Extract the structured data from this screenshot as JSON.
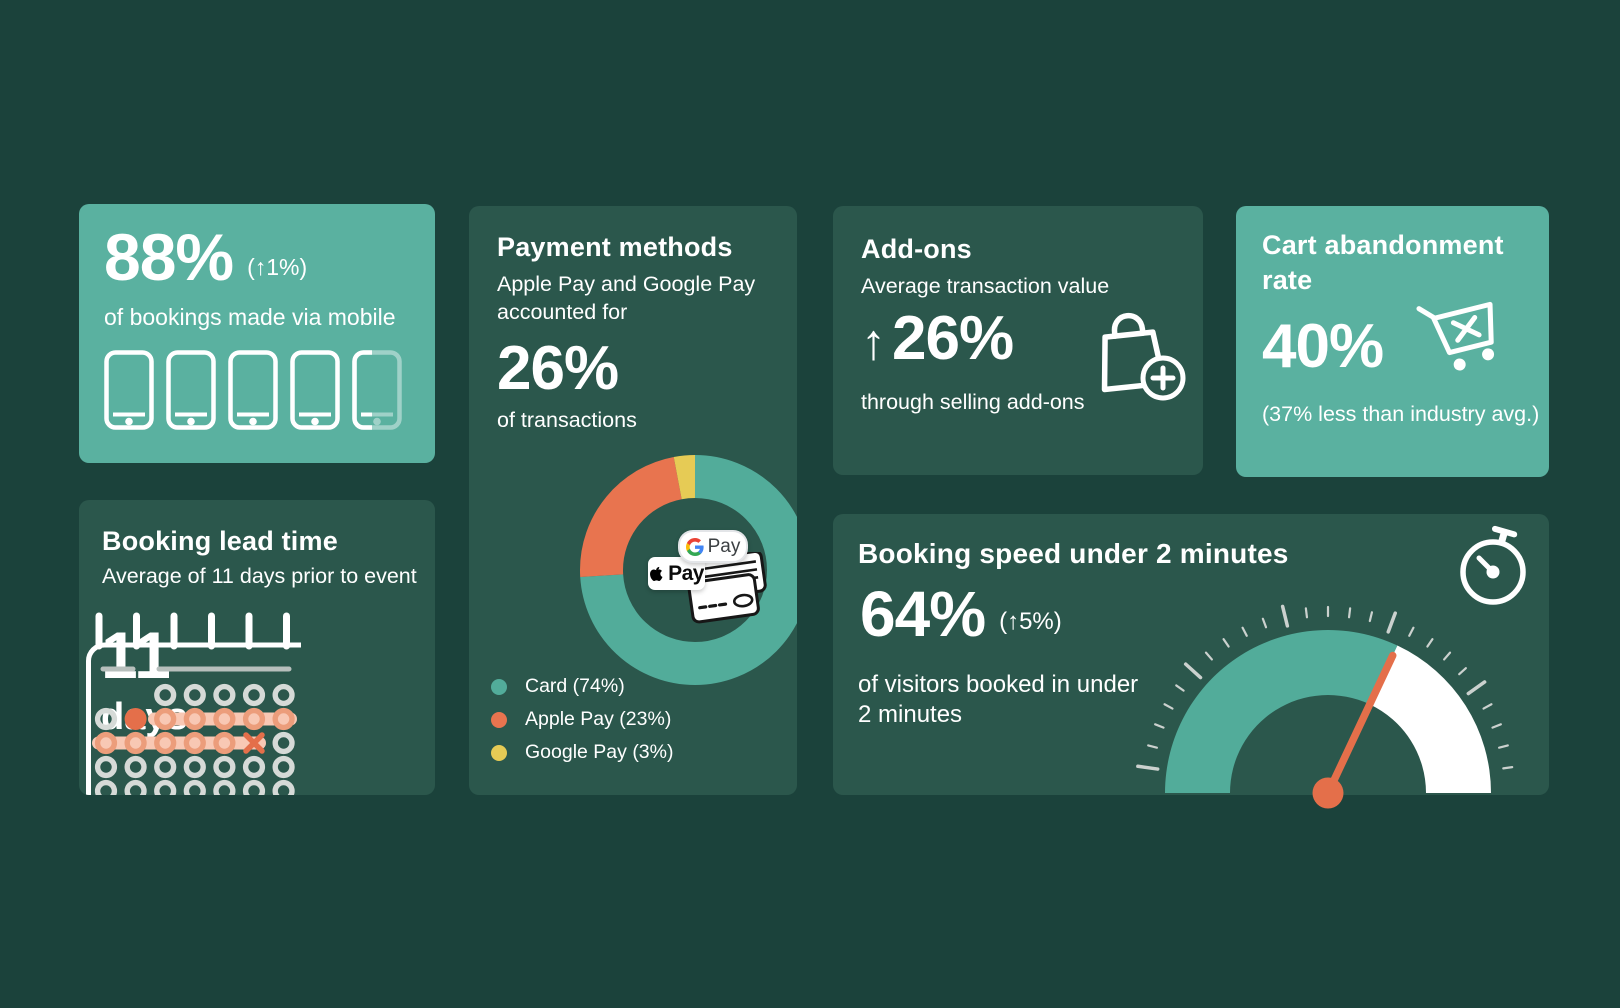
{
  "background_color": "#1b423b",
  "colors": {
    "card": "#2b574c",
    "teal_card": "#5ab1a0",
    "orange": "#e8744f",
    "yellow": "#e6cb55",
    "donut_teal": "#52ac9a",
    "needle": "#e46f4a"
  },
  "cards": {
    "mobile": {
      "value": "88%",
      "delta": "(↑1%)",
      "caption": "of bookings made via mobile",
      "percent": 88,
      "icons_total": 5
    },
    "lead_time": {
      "title": "Booking lead time",
      "subtitle": "Average of 11 days prior to event",
      "value": "11",
      "unit": "days",
      "days": 11
    },
    "payment": {
      "title": "Payment methods",
      "subtitle": "Apple Pay and Google Pay accounted for",
      "value": "26%",
      "caption": "of transactions",
      "center_labels": {
        "gpay": "Pay",
        "apple": "Pay"
      }
    },
    "addons": {
      "title": "Add-ons",
      "subtitle": "Average transaction value",
      "arrow": "↑",
      "value": "26%",
      "caption": "through selling add-ons"
    },
    "cart": {
      "title": "Cart abandonment rate",
      "value": "40%",
      "note": "(37% less than industry avg.)"
    },
    "speed": {
      "title": "Booking speed under 2 minutes",
      "value": "64%",
      "delta": "(↑5%)",
      "caption": "of visitors booked in under 2 minutes",
      "percent": 64
    }
  },
  "icons": {
    "mobile_card": "smartphone-icon",
    "lead_time_card": "calendar-icon",
    "addons_card": "shopping-bag-plus-icon",
    "cart_card": "abandoned-cart-icon",
    "speed_card": "stopwatch-icon",
    "payment_center": [
      "gpay-badge",
      "applepay-badge",
      "credit-cards-icon"
    ]
  },
  "chart_data": [
    {
      "type": "pie",
      "variant": "donut",
      "title": "Payment methods",
      "labels": [
        "Card",
        "Apple Pay",
        "Google Pay"
      ],
      "values": [
        74,
        23,
        3
      ],
      "colors": [
        "#52ac9a",
        "#e8744f",
        "#e6cb55"
      ],
      "legend": [
        "Card (74%)",
        "Apple Pay (23%)",
        "Google Pay (3%)"
      ],
      "legend_position": "bottom-left",
      "order": "clockwise-from-top"
    },
    {
      "type": "gauge",
      "title": "Booking speed under 2 minutes",
      "value": 64,
      "min": 0,
      "max": 100,
      "filled_color": "#52ac9a",
      "empty_color": "#ffffff",
      "needle_color": "#e46f4a"
    }
  ]
}
